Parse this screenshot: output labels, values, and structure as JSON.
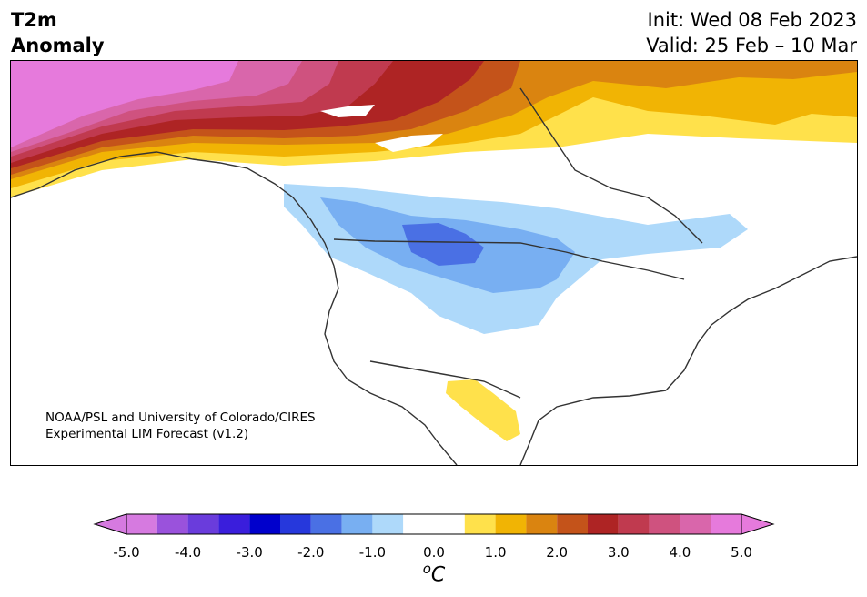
{
  "title": {
    "line1": "T2m",
    "line2": "Anomaly"
  },
  "init_text": "Init: Wed 08 Feb 2023",
  "valid_text": "Valid: 25 Feb – 10 Mar",
  "credit": {
    "line1": "NOAA/PSL and University of Colorado/CIRES",
    "line2": "Experimental LIM Forecast (v1.2)"
  },
  "colorbar": {
    "unit_symbol": "o",
    "unit_letter": "C",
    "tick_labels": [
      "-5.0",
      "-4.0",
      "-3.0",
      "-2.0",
      "-1.0",
      "0.0",
      "1.0",
      "2.0",
      "3.0",
      "4.0",
      "5.0"
    ],
    "bin_edges": [
      -5.0,
      -4.5,
      -4.0,
      -3.5,
      -3.0,
      -2.5,
      -2.0,
      -1.5,
      -1.0,
      -0.5,
      0.5,
      1.0,
      1.5,
      2.0,
      2.5,
      3.0,
      3.5,
      4.0,
      4.5,
      5.0
    ],
    "colors": [
      "#d67ae0",
      "#9a52dc",
      "#6a3cdc",
      "#3a1edc",
      "#0000cc",
      "#2638dc",
      "#4a70e4",
      "#78aff2",
      "#aed9fa",
      "#ffffff",
      "#ffe14b",
      "#f1b404",
      "#da8410",
      "#c4531a",
      "#ae2424",
      "#c03a4f",
      "#cf527f",
      "#d966ab",
      "#e67adc"
    ],
    "under_color": "#d67ae0",
    "over_color": "#e67adc"
  },
  "map_colors": {
    "pink": "#e67adc",
    "pink_dark": "#d966ab",
    "rose": "#cf527f",
    "crimson": "#c03a4f",
    "red": "#ae2424",
    "red_orange": "#c4531a",
    "orange": "#da8410",
    "gold": "#f1b404",
    "yellow": "#ffe14b",
    "light_blue": "#aed9fa",
    "mid_blue": "#78aff2",
    "blue": "#4a70e4",
    "coast": "#333333"
  }
}
